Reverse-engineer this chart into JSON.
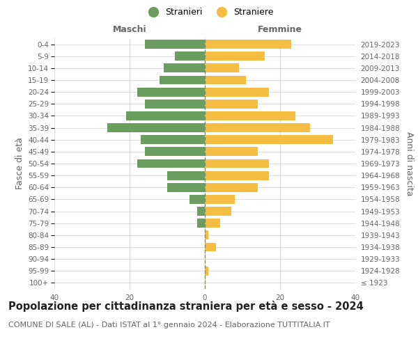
{
  "age_groups": [
    "100+",
    "95-99",
    "90-94",
    "85-89",
    "80-84",
    "75-79",
    "70-74",
    "65-69",
    "60-64",
    "55-59",
    "50-54",
    "45-49",
    "40-44",
    "35-39",
    "30-34",
    "25-29",
    "20-24",
    "15-19",
    "10-14",
    "5-9",
    "0-4"
  ],
  "birth_years": [
    "≤ 1923",
    "1924-1928",
    "1929-1933",
    "1934-1938",
    "1939-1943",
    "1944-1948",
    "1949-1953",
    "1954-1958",
    "1959-1963",
    "1964-1968",
    "1969-1973",
    "1974-1978",
    "1979-1983",
    "1984-1988",
    "1989-1993",
    "1994-1998",
    "1999-2003",
    "2004-2008",
    "2009-2013",
    "2014-2018",
    "2019-2023"
  ],
  "males": [
    0,
    0,
    0,
    0,
    0,
    2,
    2,
    4,
    10,
    10,
    18,
    16,
    17,
    26,
    21,
    16,
    18,
    12,
    11,
    8,
    16
  ],
  "females": [
    0,
    1,
    0,
    3,
    1,
    4,
    7,
    8,
    14,
    17,
    17,
    14,
    34,
    28,
    24,
    14,
    17,
    11,
    9,
    16,
    23
  ],
  "male_color": "#6a9e5e",
  "female_color": "#f5be42",
  "background_color": "#ffffff",
  "grid_color": "#d0d0d0",
  "center_line_color": "#888866",
  "xlim": 40,
  "title": "Popolazione per cittadinanza straniera per età e sesso - 2024",
  "subtitle": "COMUNE DI SALE (AL) - Dati ISTAT al 1° gennaio 2024 - Elaborazione TUTTITALIA.IT",
  "ylabel_left": "Fasce di età",
  "ylabel_right": "Anni di nascita",
  "xlabel_maschi": "Maschi",
  "xlabel_femmine": "Femmine",
  "legend_stranieri": "Stranieri",
  "legend_straniere": "Straniere",
  "title_fontsize": 10.5,
  "subtitle_fontsize": 8,
  "tick_fontsize": 7.5,
  "label_fontsize": 9,
  "maschi_femmine_fontsize": 9
}
